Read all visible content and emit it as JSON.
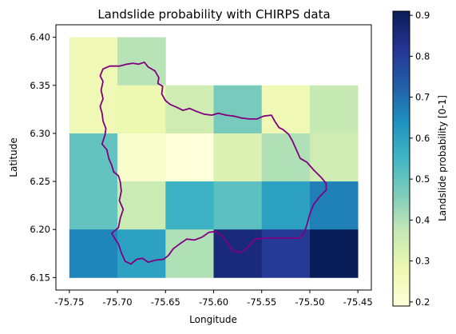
{
  "chart_data": {
    "type": "heatmap",
    "title": "Landslide probability with CHIRPS data",
    "xlabel": "Longitude",
    "ylabel": "Latitude",
    "colorbar_label": "Landslide probability [0-1]",
    "colormap": "YlGnBu",
    "xlim": [
      -75.764,
      -75.436
    ],
    "ylim": [
      6.137,
      6.413
    ],
    "x_ticks": [
      -75.75,
      -75.7,
      -75.65,
      -75.6,
      -75.55,
      -75.5,
      -75.45
    ],
    "x_tick_labels": [
      "-75.75",
      "-75.70",
      "-75.65",
      "-75.60",
      "-75.55",
      "-75.50",
      "-75.45"
    ],
    "y_ticks": [
      6.15,
      6.2,
      6.25,
      6.3,
      6.35,
      6.4
    ],
    "y_tick_labels": [
      "6.15",
      "6.20",
      "6.25",
      "6.30",
      "6.35",
      "6.40"
    ],
    "colorbar_range": [
      0.19,
      0.91
    ],
    "colorbar_ticks": [
      0.2,
      0.3,
      0.4,
      0.5,
      0.6,
      0.7,
      0.8,
      0.9
    ],
    "colorbar_tick_labels": [
      "0.2",
      "0.3",
      "0.4",
      "0.5",
      "0.6",
      "0.7",
      "0.8",
      "0.9"
    ],
    "cells": [
      {
        "lon_min": -75.75,
        "lon_max": -75.7,
        "lat_min": 6.35,
        "lat_max": 6.4,
        "value": 0.27
      },
      {
        "lon_min": -75.7,
        "lon_max": -75.65,
        "lat_min": 6.35,
        "lat_max": 6.4,
        "value": 0.39
      },
      {
        "lon_min": -75.75,
        "lon_max": -75.7,
        "lat_min": 6.3,
        "lat_max": 6.35,
        "value": 0.27
      },
      {
        "lon_min": -75.7,
        "lon_max": -75.65,
        "lat_min": 6.3,
        "lat_max": 6.35,
        "value": 0.28
      },
      {
        "lon_min": -75.65,
        "lon_max": -75.6,
        "lat_min": 6.3,
        "lat_max": 6.35,
        "value": 0.35
      },
      {
        "lon_min": -75.6,
        "lon_max": -75.55,
        "lat_min": 6.3,
        "lat_max": 6.35,
        "value": 0.47
      },
      {
        "lon_min": -75.55,
        "lon_max": -75.5,
        "lat_min": 6.3,
        "lat_max": 6.35,
        "value": 0.27
      },
      {
        "lon_min": -75.5,
        "lon_max": -75.45,
        "lat_min": 6.3,
        "lat_max": 6.35,
        "value": 0.37
      },
      {
        "lon_min": -75.75,
        "lon_max": -75.7,
        "lat_min": 6.25,
        "lat_max": 6.3,
        "value": 0.5
      },
      {
        "lon_min": -75.7,
        "lon_max": -75.65,
        "lat_min": 6.25,
        "lat_max": 6.3,
        "value": 0.22
      },
      {
        "lon_min": -75.65,
        "lon_max": -75.6,
        "lat_min": 6.25,
        "lat_max": 6.3,
        "value": 0.19
      },
      {
        "lon_min": -75.6,
        "lon_max": -75.55,
        "lat_min": 6.25,
        "lat_max": 6.3,
        "value": 0.32
      },
      {
        "lon_min": -75.55,
        "lon_max": -75.5,
        "lat_min": 6.25,
        "lat_max": 6.3,
        "value": 0.4
      },
      {
        "lon_min": -75.5,
        "lon_max": -75.45,
        "lat_min": 6.25,
        "lat_max": 6.3,
        "value": 0.35
      },
      {
        "lon_min": -75.75,
        "lon_max": -75.7,
        "lat_min": 6.2,
        "lat_max": 6.25,
        "value": 0.5
      },
      {
        "lon_min": -75.7,
        "lon_max": -75.65,
        "lat_min": 6.2,
        "lat_max": 6.25,
        "value": 0.36
      },
      {
        "lon_min": -75.65,
        "lon_max": -75.6,
        "lat_min": 6.2,
        "lat_max": 6.25,
        "value": 0.56
      },
      {
        "lon_min": -75.6,
        "lon_max": -75.55,
        "lat_min": 6.2,
        "lat_max": 6.25,
        "value": 0.51
      },
      {
        "lon_min": -75.55,
        "lon_max": -75.5,
        "lat_min": 6.2,
        "lat_max": 6.25,
        "value": 0.6
      },
      {
        "lon_min": -75.5,
        "lon_max": -75.45,
        "lat_min": 6.2,
        "lat_max": 6.25,
        "value": 0.67
      },
      {
        "lon_min": -75.75,
        "lon_max": -75.7,
        "lat_min": 6.15,
        "lat_max": 6.2,
        "value": 0.66
      },
      {
        "lon_min": -75.7,
        "lon_max": -75.65,
        "lat_min": 6.15,
        "lat_max": 6.2,
        "value": 0.6
      },
      {
        "lon_min": -75.65,
        "lon_max": -75.6,
        "lat_min": 6.15,
        "lat_max": 6.2,
        "value": 0.4
      },
      {
        "lon_min": -75.6,
        "lon_max": -75.55,
        "lat_min": 6.15,
        "lat_max": 6.2,
        "value": 0.86
      },
      {
        "lon_min": -75.55,
        "lon_max": -75.5,
        "lat_min": 6.15,
        "lat_max": 6.2,
        "value": 0.81
      },
      {
        "lon_min": -75.5,
        "lon_max": -75.45,
        "lat_min": 6.15,
        "lat_max": 6.2,
        "value": 0.91
      }
    ],
    "boundary_color": "#800080",
    "boundary": [
      [
        -75.684,
        6.373
      ],
      [
        -75.678,
        6.372
      ],
      [
        -75.672,
        6.374
      ],
      [
        -75.668,
        6.369
      ],
      [
        -75.661,
        6.365
      ],
      [
        -75.657,
        6.358
      ],
      [
        -75.658,
        6.352
      ],
      [
        -75.653,
        6.349
      ],
      [
        -75.654,
        6.341
      ],
      [
        -75.65,
        6.334
      ],
      [
        -75.645,
        6.33
      ],
      [
        -75.638,
        6.327
      ],
      [
        -75.632,
        6.324
      ],
      [
        -75.625,
        6.326
      ],
      [
        -75.618,
        6.323
      ],
      [
        -75.61,
        6.32
      ],
      [
        -75.602,
        6.319
      ],
      [
        -75.595,
        6.321
      ],
      [
        -75.587,
        6.319
      ],
      [
        -75.579,
        6.318
      ],
      [
        -75.571,
        6.316
      ],
      [
        -75.563,
        6.315
      ],
      [
        -75.555,
        6.315
      ],
      [
        -75.548,
        6.318
      ],
      [
        -75.54,
        6.319
      ],
      [
        -75.536,
        6.312
      ],
      [
        -75.532,
        6.306
      ],
      [
        -75.528,
        6.304
      ],
      [
        -75.522,
        6.299
      ],
      [
        -75.518,
        6.292
      ],
      [
        -75.514,
        6.283
      ],
      [
        -75.51,
        6.274
      ],
      [
        -75.503,
        6.27
      ],
      [
        -75.496,
        6.262
      ],
      [
        -75.488,
        6.254
      ],
      [
        -75.483,
        6.248
      ],
      [
        -75.483,
        6.241
      ],
      [
        -75.489,
        6.235
      ],
      [
        -75.496,
        6.226
      ],
      [
        -75.5,
        6.216
      ],
      [
        -75.503,
        6.205
      ],
      [
        -75.506,
        6.196
      ],
      [
        -75.511,
        6.191
      ],
      [
        -75.52,
        6.191
      ],
      [
        -75.531,
        6.191
      ],
      [
        -75.545,
        6.191
      ],
      [
        -75.557,
        6.19
      ],
      [
        -75.566,
        6.18
      ],
      [
        -75.572,
        6.176
      ],
      [
        -75.58,
        6.178
      ],
      [
        -75.586,
        6.186
      ],
      [
        -75.591,
        6.193
      ],
      [
        -75.598,
        6.198
      ],
      [
        -75.605,
        6.197
      ],
      [
        -75.612,
        6.192
      ],
      [
        -75.62,
        6.189
      ],
      [
        -75.628,
        6.19
      ],
      [
        -75.634,
        6.186
      ],
      [
        -75.642,
        6.18
      ],
      [
        -75.647,
        6.173
      ],
      [
        -75.652,
        6.169
      ],
      [
        -75.661,
        6.168
      ],
      [
        -75.668,
        6.166
      ],
      [
        -75.674,
        6.17
      ],
      [
        -75.68,
        6.169
      ],
      [
        -75.686,
        6.164
      ],
      [
        -75.692,
        6.167
      ],
      [
        -75.696,
        6.176
      ],
      [
        -75.699,
        6.185
      ],
      [
        -75.703,
        6.191
      ],
      [
        -75.706,
        6.196
      ],
      [
        -75.699,
        6.202
      ],
      [
        -75.697,
        6.212
      ],
      [
        -75.694,
        6.221
      ],
      [
        -75.698,
        6.23
      ],
      [
        -75.696,
        6.24
      ],
      [
        -75.697,
        6.249
      ],
      [
        -75.699,
        6.256
      ],
      [
        -75.704,
        6.26
      ],
      [
        -75.706,
        6.267
      ],
      [
        -75.709,
        6.274
      ],
      [
        -75.711,
        6.283
      ],
      [
        -75.716,
        6.289
      ],
      [
        -75.713,
        6.298
      ],
      [
        -75.712,
        6.305
      ],
      [
        -75.715,
        6.313
      ],
      [
        -75.716,
        6.321
      ],
      [
        -75.718,
        6.328
      ],
      [
        -75.715,
        6.336
      ],
      [
        -75.717,
        6.345
      ],
      [
        -75.715,
        6.354
      ],
      [
        -75.718,
        6.36
      ],
      [
        -75.715,
        6.367
      ],
      [
        -75.708,
        6.37
      ],
      [
        -75.698,
        6.37
      ],
      [
        -75.69,
        6.372
      ],
      [
        -75.684,
        6.373
      ]
    ]
  }
}
